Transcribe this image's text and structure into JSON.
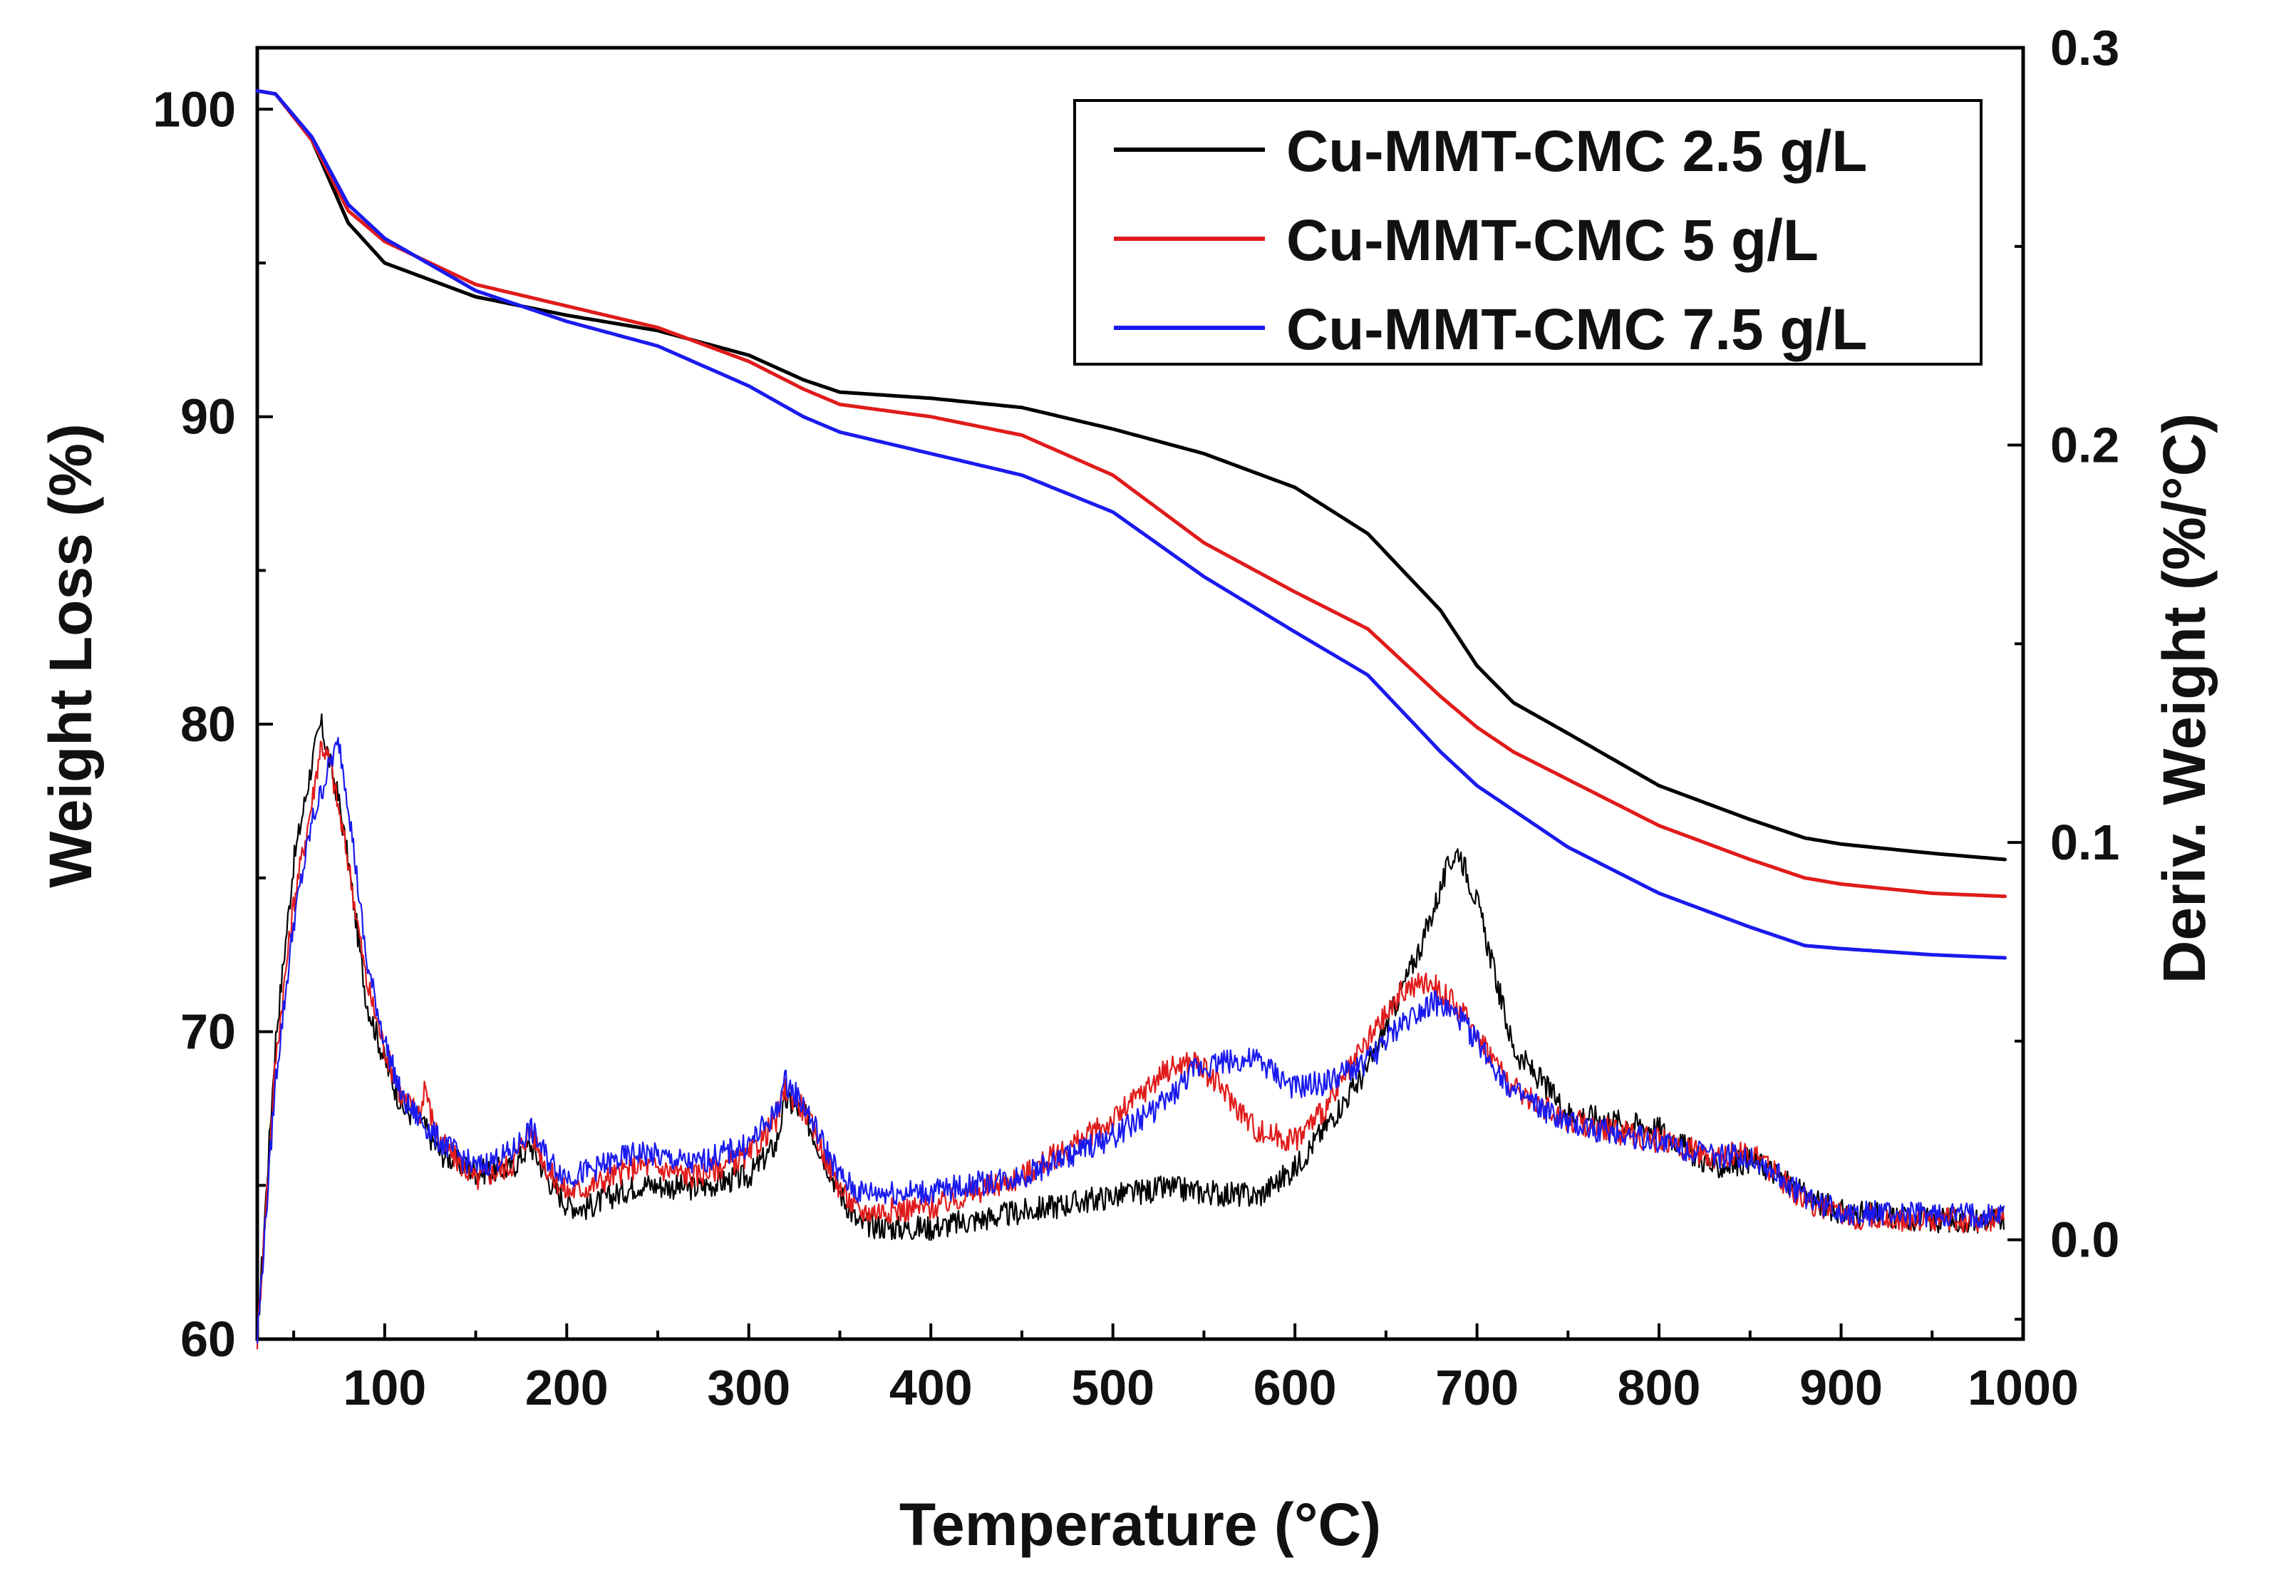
{
  "chart_data": {
    "type": "line",
    "title": "",
    "xlabel": "Temperature",
    "xlabel_unit": "(°C)",
    "ylabel_left": "Weight Loss (%)",
    "ylabel_right": "Deriv. Weight (%/°C)",
    "xlim": [
      30,
      1000
    ],
    "ylim_left": [
      60,
      102
    ],
    "ylim_right": [
      -0.025,
      0.3
    ],
    "x_ticks": [
      100,
      200,
      300,
      400,
      500,
      600,
      700,
      800,
      900,
      1000
    ],
    "y_left_ticks": [
      60,
      70,
      80,
      90,
      100
    ],
    "y_right_ticks": [
      "0.0",
      "0.1",
      "0.2",
      "0.3"
    ],
    "legend_position": "top-right",
    "colors": {
      "black": "#000000",
      "red": "#e01b1b",
      "blue": "#1a1aee"
    },
    "series": [
      {
        "name": "Cu-MMT-CMC 2.5 g/L",
        "color": "#000000",
        "tga": {
          "x": [
            30,
            40,
            60,
            80,
            100,
            150,
            200,
            250,
            300,
            330,
            350,
            400,
            450,
            500,
            550,
            600,
            640,
            680,
            700,
            720,
            750,
            800,
            850,
            880,
            900,
            950,
            990
          ],
          "y": [
            100.6,
            100.5,
            99.0,
            96.3,
            95.0,
            93.9,
            93.3,
            92.8,
            92.0,
            91.2,
            90.8,
            90.6,
            90.3,
            89.6,
            88.8,
            87.7,
            86.2,
            83.7,
            81.9,
            80.7,
            79.7,
            78.0,
            76.9,
            76.3,
            76.1,
            75.8,
            75.6
          ]
        },
        "dtg": {
          "x": [
            30,
            40,
            50,
            60,
            65,
            70,
            75,
            80,
            90,
            100,
            110,
            120,
            130,
            150,
            170,
            180,
            190,
            200,
            210,
            240,
            270,
            300,
            315,
            320,
            330,
            350,
            360,
            380,
            400,
            450,
            500,
            530,
            550,
            580,
            600,
            640,
            670,
            685,
            690,
            700,
            720,
            750,
            800,
            830,
            850,
            860,
            880,
            900,
            950,
            990
          ],
          "y": [
            -0.025,
            0.05,
            0.095,
            0.12,
            0.13,
            0.12,
            0.11,
            0.095,
            0.06,
            0.045,
            0.033,
            0.03,
            0.022,
            0.017,
            0.018,
            0.024,
            0.015,
            0.009,
            0.008,
            0.014,
            0.013,
            0.016,
            0.024,
            0.035,
            0.032,
            0.012,
            0.004,
            0.003,
            0.003,
            0.007,
            0.011,
            0.013,
            0.012,
            0.011,
            0.018,
            0.043,
            0.075,
            0.095,
            0.098,
            0.085,
            0.048,
            0.032,
            0.028,
            0.018,
            0.02,
            0.018,
            0.011,
            0.007,
            0.005,
            0.005
          ]
        }
      },
      {
        "name": "Cu-MMT-CMC 5 g/L",
        "color": "#e01b1b",
        "tga": {
          "x": [
            30,
            40,
            60,
            80,
            100,
            150,
            200,
            250,
            300,
            330,
            350,
            400,
            450,
            500,
            550,
            600,
            640,
            680,
            700,
            720,
            750,
            800,
            850,
            880,
            900,
            950,
            990
          ],
          "y": [
            100.6,
            100.5,
            99.0,
            96.7,
            95.7,
            94.3,
            93.6,
            92.9,
            91.8,
            90.9,
            90.4,
            90.0,
            89.4,
            88.1,
            85.9,
            84.3,
            83.1,
            80.9,
            79.9,
            79.1,
            78.2,
            76.7,
            75.6,
            75.0,
            74.8,
            74.5,
            74.4
          ]
        },
        "dtg": {
          "x": [
            30,
            40,
            50,
            60,
            65,
            70,
            80,
            90,
            100,
            110,
            120,
            122,
            125,
            130,
            150,
            170,
            180,
            190,
            200,
            210,
            240,
            270,
            300,
            315,
            320,
            330,
            350,
            360,
            400,
            450,
            500,
            530,
            545,
            560,
            580,
            600,
            620,
            640,
            660,
            675,
            690,
            700,
            720,
            750,
            800,
            830,
            850,
            860,
            880,
            900,
            950,
            990
          ],
          "y": [
            -0.025,
            0.045,
            0.085,
            0.11,
            0.125,
            0.12,
            0.095,
            0.065,
            0.048,
            0.035,
            0.032,
            0.04,
            0.032,
            0.025,
            0.015,
            0.019,
            0.028,
            0.017,
            0.012,
            0.013,
            0.019,
            0.016,
            0.021,
            0.03,
            0.038,
            0.033,
            0.013,
            0.007,
            0.008,
            0.016,
            0.03,
            0.043,
            0.045,
            0.038,
            0.027,
            0.025,
            0.035,
            0.05,
            0.063,
            0.065,
            0.058,
            0.052,
            0.038,
            0.03,
            0.025,
            0.021,
            0.022,
            0.018,
            0.01,
            0.006,
            0.005,
            0.005
          ]
        }
      },
      {
        "name": "Cu-MMT-CMC 7.5 g/L",
        "color": "#1a1aee",
        "tga": {
          "x": [
            30,
            40,
            60,
            80,
            100,
            150,
            200,
            250,
            300,
            330,
            350,
            400,
            450,
            500,
            550,
            600,
            640,
            680,
            700,
            720,
            750,
            800,
            850,
            880,
            900,
            950,
            990
          ],
          "y": [
            100.6,
            100.5,
            99.1,
            96.9,
            95.8,
            94.1,
            93.1,
            92.3,
            91.0,
            90.0,
            89.5,
            88.8,
            88.1,
            86.9,
            84.8,
            83.0,
            81.6,
            79.1,
            78.0,
            77.2,
            76.0,
            74.5,
            73.4,
            72.8,
            72.7,
            72.5,
            72.4
          ]
        },
        "dtg": {
          "x": [
            30,
            40,
            50,
            60,
            70,
            75,
            80,
            90,
            100,
            110,
            120,
            130,
            150,
            170,
            180,
            190,
            200,
            210,
            240,
            270,
            300,
            315,
            320,
            330,
            350,
            360,
            400,
            450,
            500,
            530,
            545,
            560,
            580,
            600,
            620,
            640,
            660,
            675,
            690,
            700,
            720,
            750,
            800,
            830,
            850,
            860,
            880,
            900,
            950,
            990
          ],
          "y": [
            -0.025,
            0.04,
            0.08,
            0.105,
            0.12,
            0.125,
            0.11,
            0.07,
            0.05,
            0.035,
            0.03,
            0.025,
            0.018,
            0.022,
            0.028,
            0.02,
            0.016,
            0.017,
            0.022,
            0.019,
            0.024,
            0.032,
            0.04,
            0.034,
            0.016,
            0.012,
            0.012,
            0.016,
            0.026,
            0.035,
            0.043,
            0.045,
            0.045,
            0.038,
            0.04,
            0.045,
            0.055,
            0.06,
            0.056,
            0.05,
            0.037,
            0.029,
            0.025,
            0.021,
            0.021,
            0.018,
            0.011,
            0.007,
            0.006,
            0.006
          ]
        }
      }
    ]
  }
}
